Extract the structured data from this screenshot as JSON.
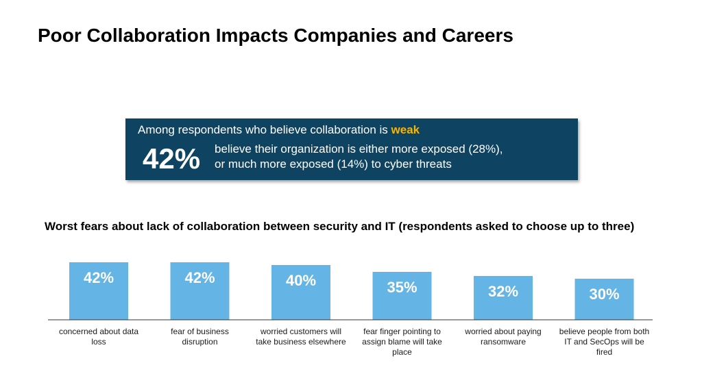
{
  "page": {
    "title": "Poor Collaboration Impacts Companies and Careers"
  },
  "callout": {
    "lead": "Among respondents who believe collaboration is",
    "highlight": "weak",
    "stat": "42%",
    "detail_line1": "believe their organization is either more exposed (28%),",
    "detail_line2": "or much more exposed (14%) to cyber threats",
    "colors": {
      "background": "#0e4461",
      "highlight": "#f7b500"
    }
  },
  "chart_data": {
    "type": "bar",
    "title": "Worst fears about lack of collaboration between security and IT (respondents asked to choose up to three)",
    "categories": [
      "concerned about data loss",
      "fear of business disruption",
      "worried customers will take business elsewhere",
      "fear finger pointing to assign blame will take place",
      "worried about paying ransomware",
      "believe people from both IT and SecOps will be fired"
    ],
    "category_lines": [
      [
        "concerned about data",
        "loss"
      ],
      [
        "fear of business",
        "disruption"
      ],
      [
        "worried customers will",
        "take business elsewhere"
      ],
      [
        "fear finger pointing to",
        "assign blame will take",
        "place"
      ],
      [
        "worried about paying",
        "ransomware"
      ],
      [
        "believe people from both",
        "IT and SecOps will be",
        "fired"
      ]
    ],
    "values": [
      42,
      42,
      40,
      35,
      32,
      30
    ],
    "value_labels": [
      "42%",
      "42%",
      "40%",
      "35%",
      "32%",
      "30%"
    ],
    "unit": "%",
    "ylim": [
      0,
      42
    ],
    "grid": false,
    "colors": {
      "bar": "#64b4e5",
      "label": "#ffffff",
      "axis": "#333333"
    }
  }
}
